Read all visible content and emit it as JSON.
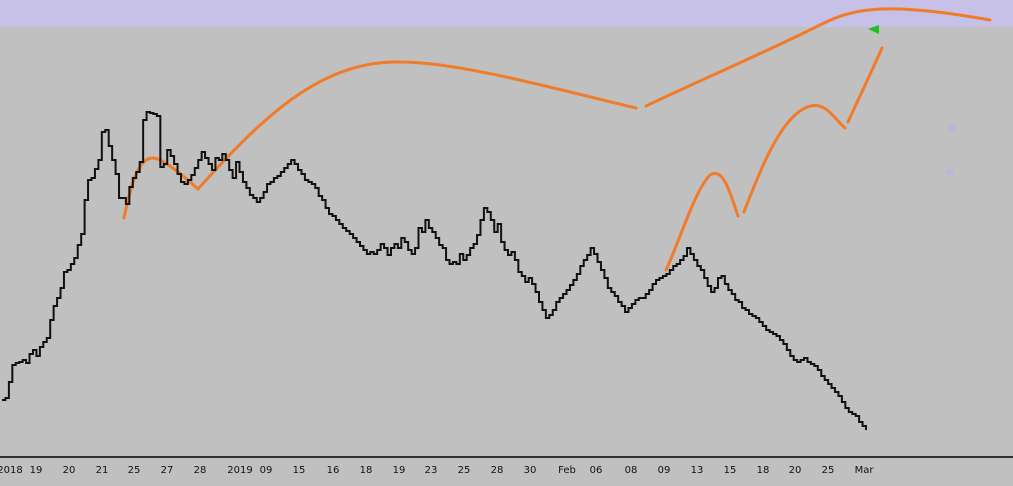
{
  "colors": {
    "background": "#c0c0c0",
    "price": "#111111",
    "annotation": "#f07b2a",
    "header_band": "#c7c1e8",
    "marker": "#20c020",
    "dot": "#b9b6dd"
  },
  "chart_data": {
    "type": "line",
    "title": "",
    "xlabel": "",
    "ylabel": "",
    "grid": false,
    "x_tick_labels": [
      "2018",
      "19",
      "20",
      "21",
      "25",
      "27",
      "28",
      "2019",
      "09",
      "15",
      "16",
      "18",
      "19",
      "23",
      "25",
      "28",
      "30",
      "Feb",
      "06",
      "08",
      "09",
      "13",
      "15",
      "18",
      "20",
      "25",
      "Mar"
    ],
    "series": [
      {
        "values": [
          60,
          62,
          78,
          95,
          97,
          98,
          100,
          97,
          106,
          110,
          104,
          113,
          118,
          122,
          140,
          154,
          162,
          172,
          188,
          190,
          196,
          202,
          215,
          226,
          260,
          280,
          282,
          291,
          300,
          328,
          330,
          314,
          300,
          286,
          262,
          262,
          256,
          273,
          282,
          288,
          298,
          340,
          348,
          347,
          346,
          344,
          293,
          296,
          310,
          304,
          296,
          286,
          278,
          276,
          280,
          285,
          292,
          300,
          308,
          302,
          296,
          290,
          302,
          300,
          306,
          300,
          290,
          282,
          298,
          288,
          278,
          272,
          265,
          262,
          258,
          262,
          268,
          276,
          278,
          282,
          284,
          288,
          292,
          296,
          300,
          296,
          290,
          286,
          280,
          278,
          276,
          272,
          264,
          260,
          252,
          246,
          244,
          240,
          236,
          232,
          229,
          226,
          222,
          218,
          214,
          210,
          206,
          208,
          206,
          210,
          216,
          212,
          205,
          212,
          216,
          212,
          222,
          218,
          210,
          206,
          212,
          232,
          228,
          240,
          232,
          228,
          222,
          215,
          212,
          200,
          196,
          198,
          196,
          206,
          200,
          205,
          212,
          216,
          225,
          240,
          252,
          248,
          240,
          228,
          236,
          218,
          210,
          205,
          208,
          200,
          188,
          184,
          178,
          182,
          176,
          168,
          158,
          150,
          142,
          145,
          150,
          158,
          162,
          166,
          170,
          175,
          180,
          186,
          194,
          200,
          205,
          212,
          206,
          198,
          190,
          182,
          172,
          168,
          164,
          158,
          154,
          148,
          152,
          156,
          160,
          162,
          162,
          166,
          170,
          176,
          180,
          182,
          184,
          186,
          190,
          194,
          196,
          200,
          204,
          212,
          206,
          200,
          194,
          190,
          182,
          174,
          168,
          172,
          182,
          184,
          176,
          170,
          166,
          160,
          158,
          152,
          150,
          146,
          144,
          142,
          138,
          134,
          130,
          128,
          126,
          124,
          120,
          116,
          110,
          104,
          100,
          98,
          100,
          102,
          98,
          96,
          94,
          90,
          84,
          80,
          76,
          72,
          68,
          64,
          58,
          52,
          48,
          46,
          44,
          38,
          34,
          30
        ],
        "style": "step"
      }
    ],
    "annotations": [
      {
        "type": "arc",
        "description": "orange curves drawn over price"
      }
    ]
  }
}
